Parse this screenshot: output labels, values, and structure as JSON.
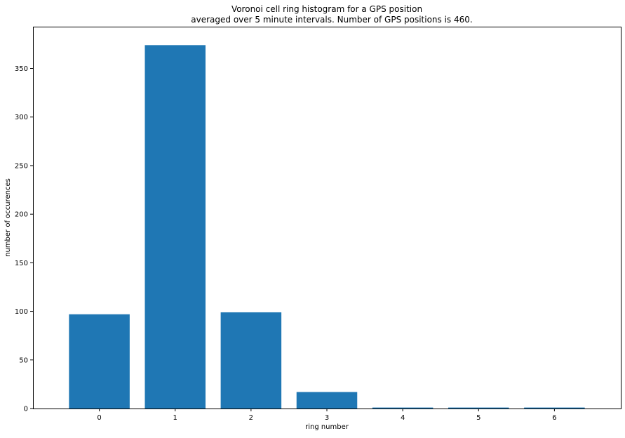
{
  "chart_data": {
    "type": "bar",
    "title_lines": [
      "Voronoi cell ring histogram for a GPS position",
      "averaged over 5 minute intervals. Number of GPS positions is 460."
    ],
    "xlabel": "ring number",
    "ylabel": "number of occurences",
    "categories": [
      "0",
      "1",
      "2",
      "3",
      "4",
      "5",
      "6"
    ],
    "values": [
      97,
      374,
      99,
      17,
      1,
      1,
      1
    ],
    "ylim": [
      0,
      393
    ],
    "yticks": [
      0,
      50,
      100,
      150,
      200,
      250,
      300,
      350
    ],
    "ytick_labels": [
      "0",
      "50",
      "100",
      "150",
      "200",
      "250",
      "300",
      "350"
    ],
    "bar_color": "#1f77b4",
    "grid": false,
    "legend": "none"
  }
}
